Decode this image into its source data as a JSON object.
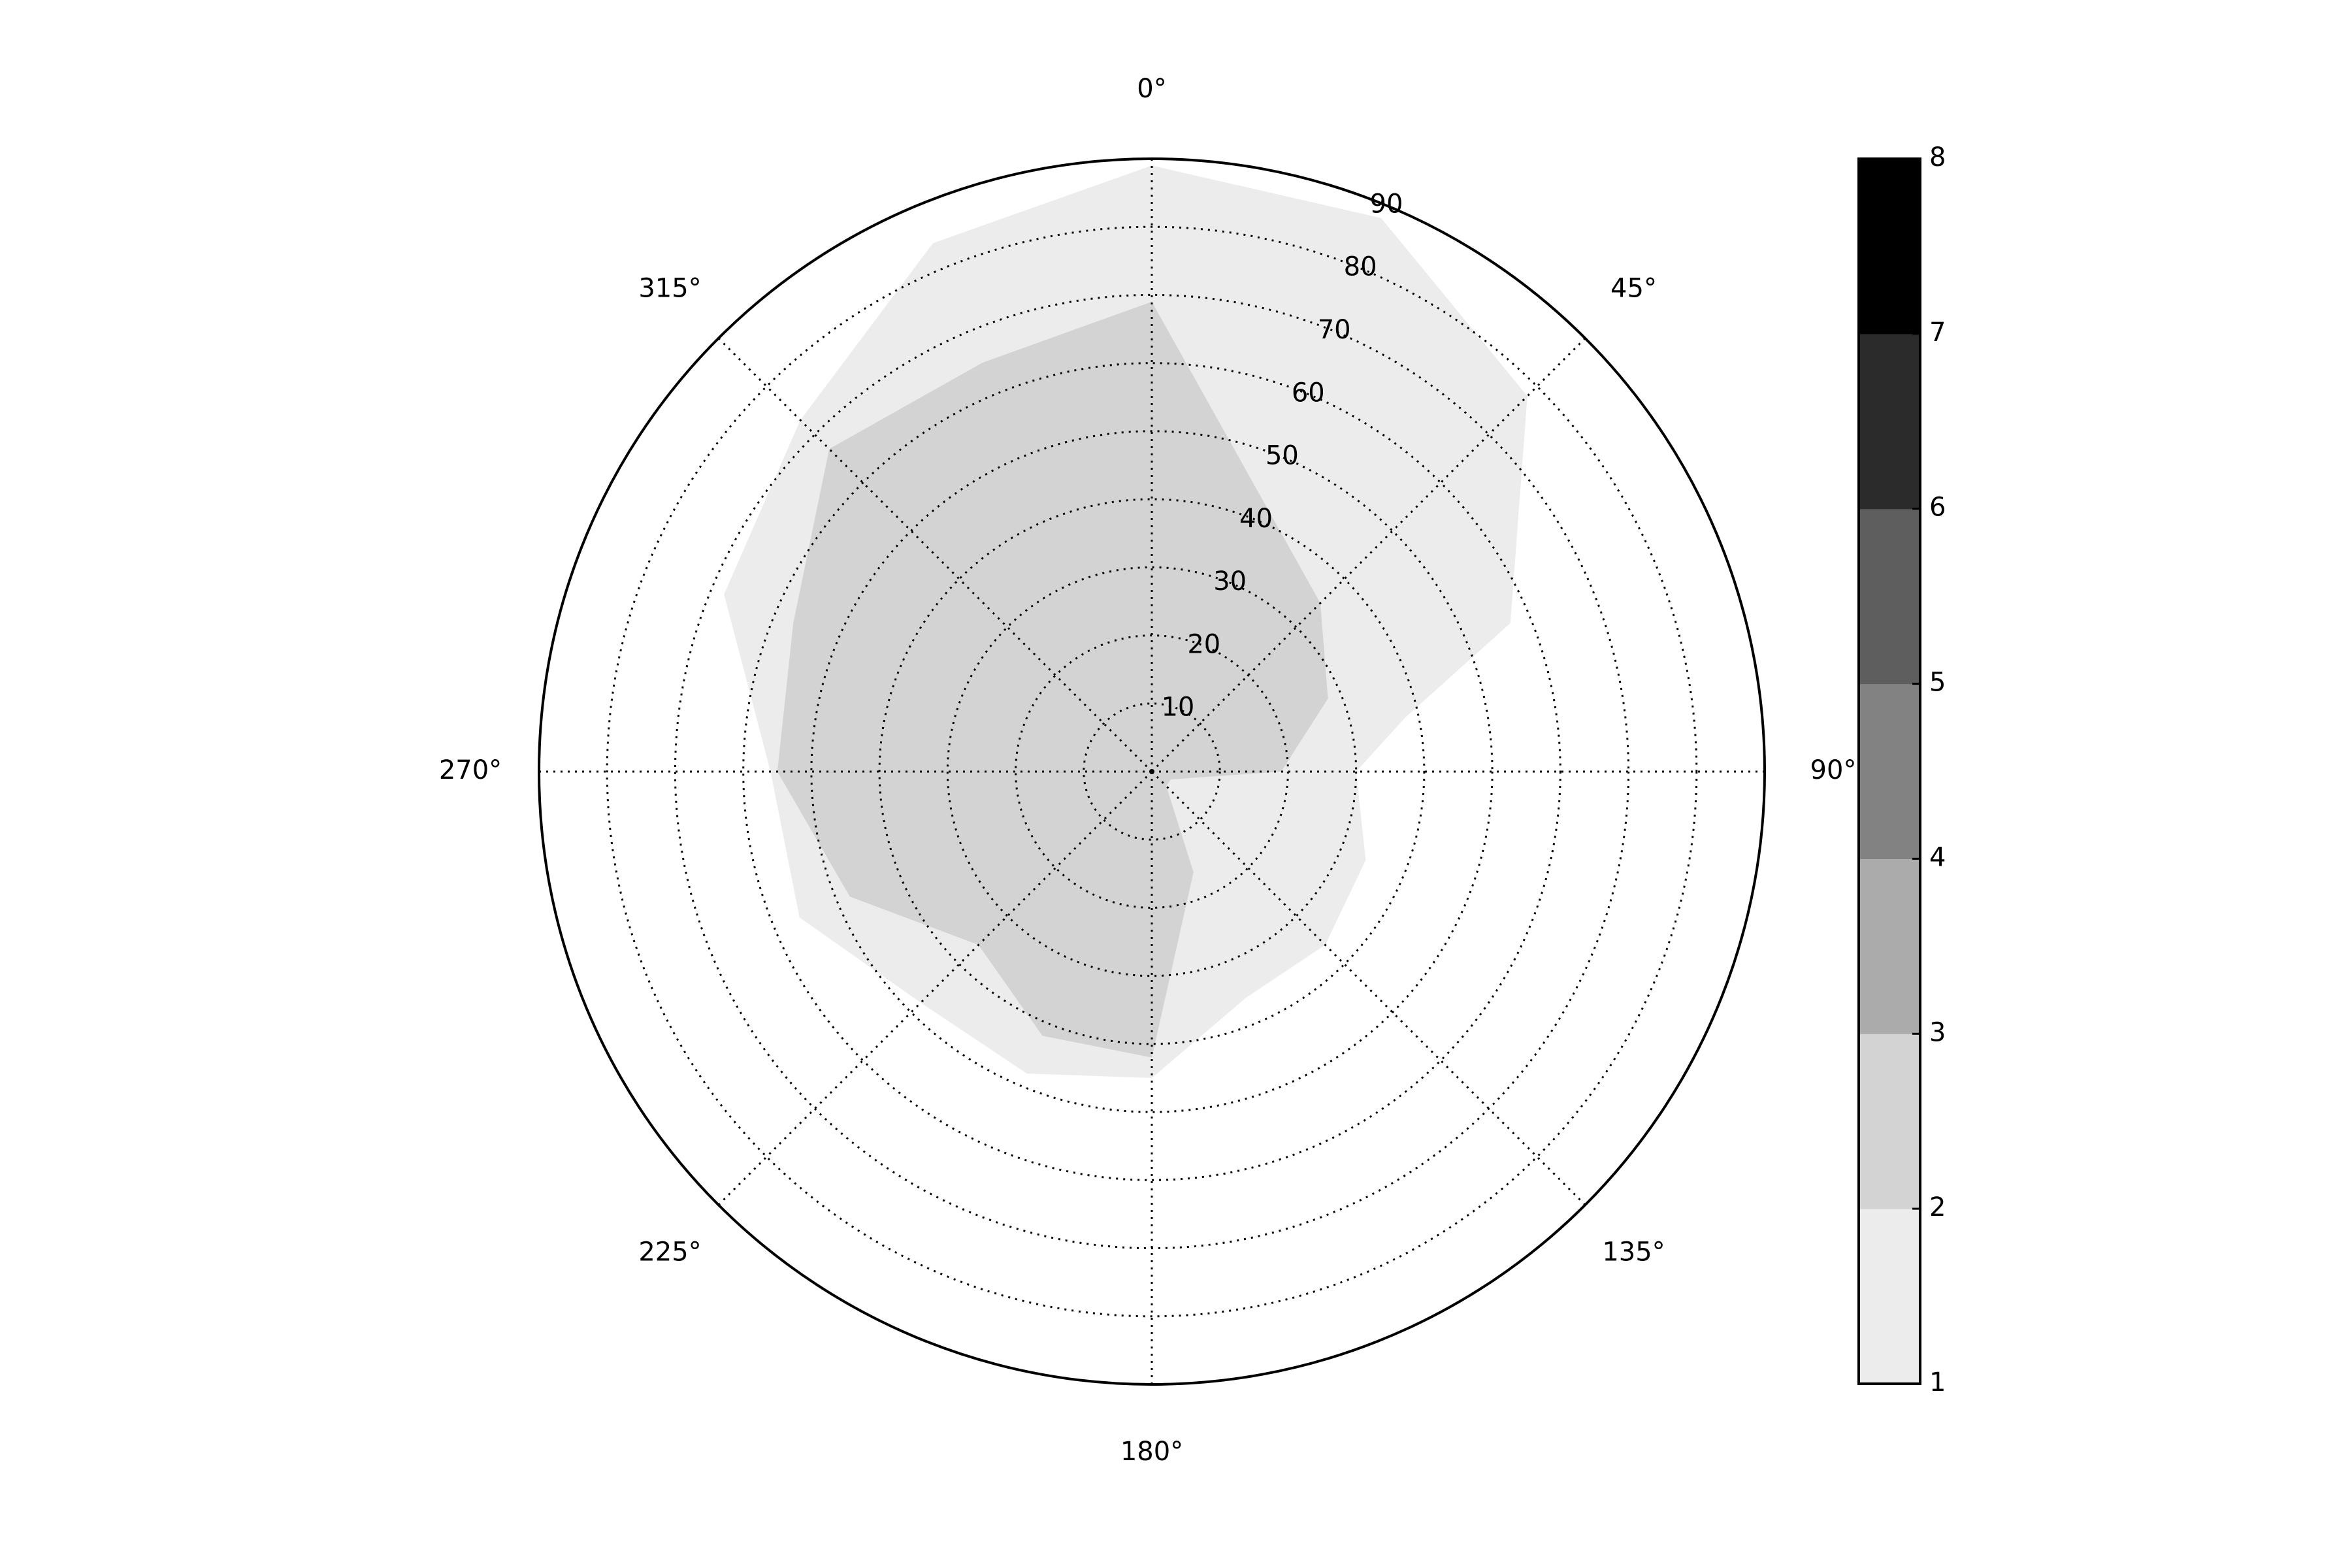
{
  "chart_data": {
    "type": "polar-contour",
    "theta_zero_location": "N",
    "theta_direction": "clockwise",
    "theta_ticks": [
      "0°",
      "45°",
      "90°",
      "135°",
      "180°",
      "225°",
      "270°",
      "315°"
    ],
    "theta_tick_values": [
      0,
      45,
      90,
      135,
      180,
      225,
      270,
      315
    ],
    "r_ticks": [
      "10",
      "20",
      "30",
      "40",
      "50",
      "60",
      "70",
      "80",
      "90"
    ],
    "r_tick_values": [
      10,
      20,
      30,
      40,
      50,
      60,
      70,
      80,
      90
    ],
    "rlim": [
      0,
      90
    ],
    "grid": true,
    "levels": [
      {
        "range": [
          1,
          2
        ],
        "color": "#ececec",
        "boundary": [
          [
            0,
            89
          ],
          [
            22.5,
            88
          ],
          [
            45,
            78
          ],
          [
            67.5,
            57
          ],
          [
            78,
            38
          ],
          [
            90,
            30
          ],
          [
            112.5,
            34
          ],
          [
            135,
            36
          ],
          [
            157.5,
            36
          ],
          [
            180,
            45
          ],
          [
            202.5,
            48
          ],
          [
            225,
            48
          ],
          [
            247.5,
            56
          ],
          [
            270,
            56
          ],
          [
            292.5,
            68
          ],
          [
            315,
            73
          ],
          [
            337.5,
            84
          ]
        ]
      },
      {
        "range": [
          2,
          3
        ],
        "color": "#d3d3d3",
        "boundary": [
          [
            0,
            69
          ],
          [
            45,
            35
          ],
          [
            67.5,
            28
          ],
          [
            90,
            19
          ],
          [
            112.5,
            3
          ],
          [
            135,
            3
          ],
          [
            157.5,
            16
          ],
          [
            180,
            42
          ],
          [
            202.5,
            42
          ],
          [
            225,
            36
          ],
          [
            247.5,
            48
          ],
          [
            270,
            55
          ],
          [
            292.5,
            57
          ],
          [
            315,
            67
          ],
          [
            337.5,
            65
          ]
        ]
      }
    ],
    "colorbar": {
      "ticks": [
        "1",
        "2",
        "3",
        "4",
        "5",
        "6",
        "7",
        "8"
      ],
      "tick_values": [
        1,
        2,
        3,
        4,
        5,
        6,
        7,
        8
      ],
      "colors": [
        "#ececec",
        "#d3d3d3",
        "#ababab",
        "#828282",
        "#5e5e5e",
        "#2b2b2b",
        "#000000"
      ]
    }
  }
}
